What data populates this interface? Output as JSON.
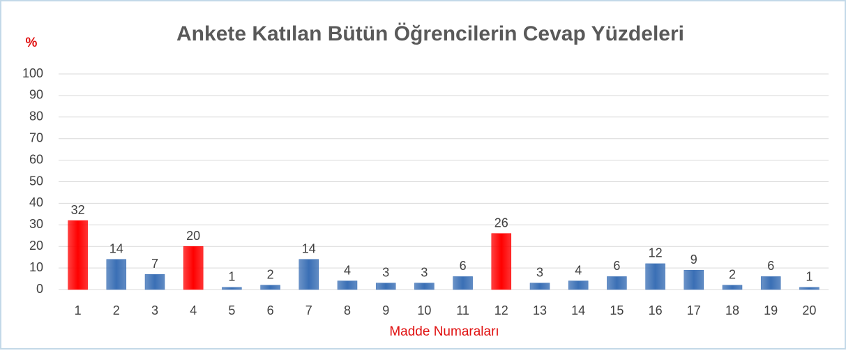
{
  "chart_data": {
    "type": "bar",
    "title": "Ankete Katılan Bütün Öğrencilerin Cevap Yüzdeleri",
    "y_label": "%",
    "x_label": "Madde Numaraları",
    "categories": [
      "1",
      "2",
      "3",
      "4",
      "5",
      "6",
      "7",
      "8",
      "9",
      "10",
      "11",
      "12",
      "13",
      "14",
      "15",
      "16",
      "17",
      "18",
      "19",
      "20"
    ],
    "values": [
      32,
      14,
      7,
      20,
      1,
      2,
      14,
      4,
      3,
      3,
      6,
      26,
      3,
      4,
      6,
      12,
      9,
      2,
      6,
      1
    ],
    "colors": [
      "#ff0000",
      "#3a6fb5",
      "#3a6fb5",
      "#ff0000",
      "#3a6fb5",
      "#3a6fb5",
      "#3a6fb5",
      "#3a6fb5",
      "#3a6fb5",
      "#3a6fb5",
      "#3a6fb5",
      "#ff0000",
      "#3a6fb5",
      "#3a6fb5",
      "#3a6fb5",
      "#3a6fb5",
      "#3a6fb5",
      "#3a6fb5",
      "#3a6fb5",
      "#3a6fb5"
    ],
    "ylim": [
      0,
      100
    ],
    "yticks": [
      0,
      10,
      20,
      30,
      40,
      50,
      60,
      70,
      80,
      90,
      100
    ],
    "grid": true
  }
}
